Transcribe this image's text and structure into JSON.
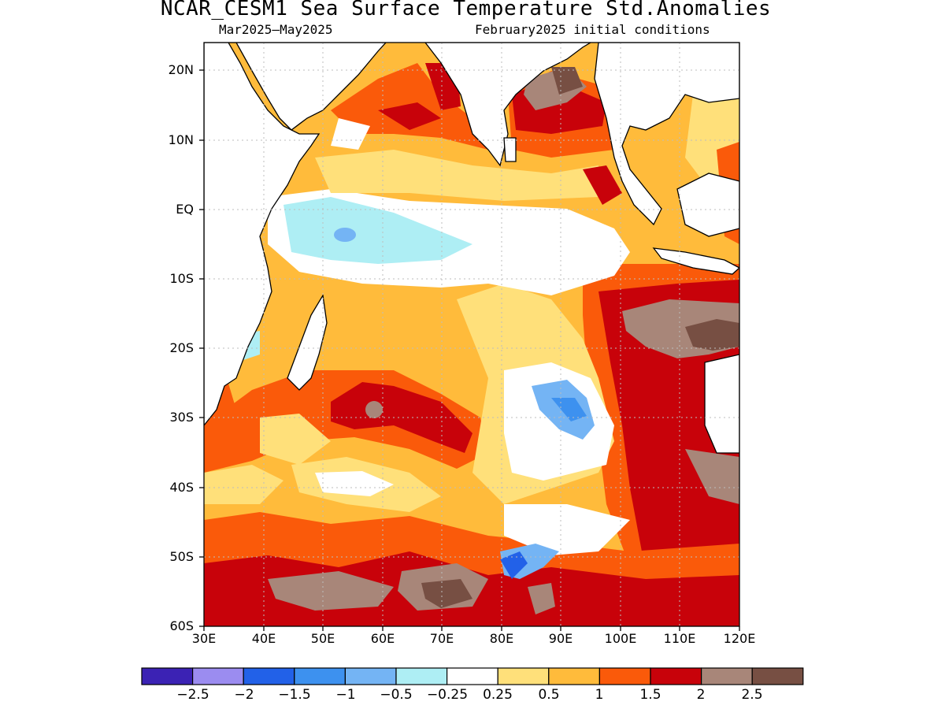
{
  "title": "NCAR_CESM1 Sea Surface Temperature Std.Anomalies",
  "subtitle_left": "Mar2025—May2025",
  "subtitle_right": "February2025 initial conditions",
  "map": {
    "lon_range": [
      30,
      120
    ],
    "lat_range": [
      -60,
      24
    ],
    "lat_labels": [
      "20N",
      "10N",
      "EQ",
      "10S",
      "20S",
      "30S",
      "40S",
      "50S",
      "60S"
    ],
    "lon_labels": [
      "30E",
      "40E",
      "50E",
      "60E",
      "70E",
      "80E",
      "90E",
      "100E",
      "110E",
      "120E"
    ]
  },
  "colorbar": {
    "colors": [
      "#3b22b4",
      "#9b8cf0",
      "#2261e8",
      "#3d91ef",
      "#74b4f4",
      "#aeeef4",
      "#ffffff",
      "#ffe07a",
      "#ffbb3b",
      "#fa5a0a",
      "#c8020a",
      "#a88679",
      "#774f43"
    ],
    "labels": [
      "−2.5",
      "−2",
      "−1.5",
      "−1",
      "−0.5",
      "−0.25",
      "0.25",
      "0.5",
      "1",
      "1.5",
      "2",
      "2.5"
    ]
  }
}
